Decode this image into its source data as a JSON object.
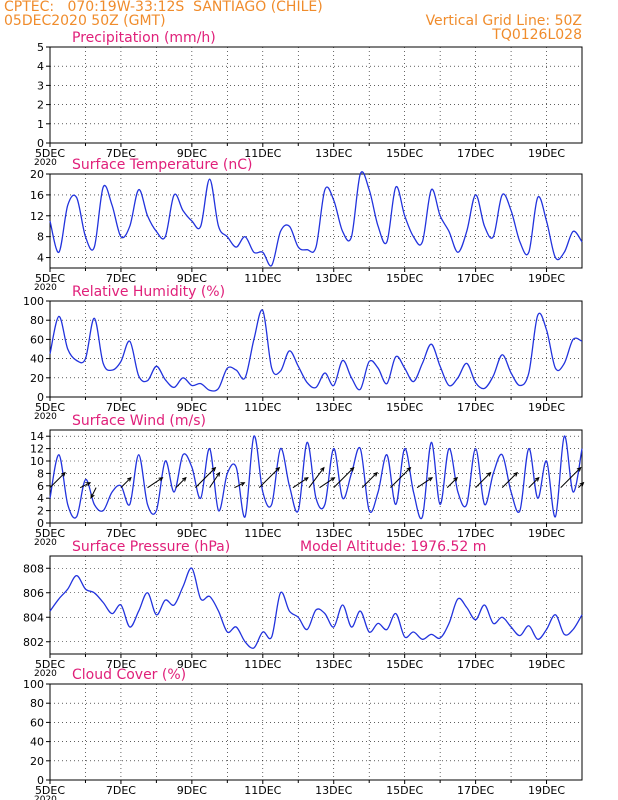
{
  "header": {
    "line1_left": "CPTEC:   070:19W-33:12S  SANTIAGO (CHILE)",
    "line2_left": "05DEC2020 50Z (GMT)",
    "line1_right": "Vertical Grid Line: 50Z",
    "line2_right": "TQ0126L028"
  },
  "colors": {
    "header": "#f08c2c",
    "title": "#e0207a",
    "series": "#2233dd",
    "wind_arrow": "#000000"
  },
  "x_axis": {
    "start": "05DEC",
    "end": "20DEC",
    "total_days": 15,
    "tick_labels": [
      "5DEC",
      "7DEC",
      "9DEC",
      "11DEC",
      "13DEC",
      "15DEC",
      "17DEC",
      "19DEC"
    ],
    "tick_days": [
      0,
      2,
      4,
      6,
      8,
      10,
      12,
      14
    ],
    "minor_tick_days": [
      1,
      3,
      5,
      7,
      9,
      11,
      13
    ],
    "year_label": "2020"
  },
  "chart_data": [
    {
      "type": "line",
      "title": "Precipitation (mm/h)",
      "ylim": [
        0,
        5
      ],
      "yticks": [
        0,
        1,
        2,
        3,
        4,
        5
      ],
      "series": [
        {
          "x": [],
          "values": []
        }
      ]
    },
    {
      "type": "line",
      "title": "Surface Temperature (nC)",
      "ylim": [
        2,
        20
      ],
      "yticks": [
        4,
        8,
        12,
        16,
        20
      ],
      "series": [
        {
          "x": [
            0,
            0.25,
            0.5,
            0.75,
            1,
            1.25,
            1.5,
            1.75,
            2,
            2.25,
            2.5,
            2.75,
            3,
            3.25,
            3.5,
            3.75,
            4,
            4.25,
            4.5,
            4.75,
            5,
            5.25,
            5.5,
            5.75,
            6,
            6.25,
            6.5,
            6.75,
            7,
            7.25,
            7.5,
            7.75,
            8,
            8.25,
            8.5,
            8.75,
            9,
            9.25,
            9.5,
            9.75,
            10,
            10.25,
            10.5,
            10.75,
            11,
            11.25,
            11.5,
            11.75,
            12,
            12.25,
            12.5,
            12.75,
            13,
            13.25,
            13.5,
            13.75,
            14,
            14.25,
            14.5,
            14.75,
            15
          ],
          "values": [
            11,
            5,
            14,
            15.5,
            8,
            6,
            17.5,
            14,
            8,
            10,
            17,
            12,
            9,
            8,
            16,
            13,
            11,
            10,
            19,
            10,
            8,
            6,
            8,
            5,
            5,
            2.5,
            9,
            10,
            6,
            5.5,
            6,
            17,
            15,
            9,
            8,
            20,
            17,
            10,
            7,
            17.5,
            12,
            8,
            7,
            17,
            12,
            9,
            5,
            9,
            16,
            10,
            8,
            16,
            13,
            7,
            5,
            15.5,
            11,
            4,
            5,
            9,
            7
          ]
        }
      ]
    },
    {
      "type": "line",
      "title": "Relative Humidity (%)",
      "ylim": [
        0,
        100
      ],
      "yticks": [
        0,
        20,
        40,
        60,
        80,
        100
      ],
      "series": [
        {
          "x": [
            0,
            0.25,
            0.5,
            0.75,
            1,
            1.25,
            1.5,
            1.75,
            2,
            2.25,
            2.5,
            2.75,
            3,
            3.25,
            3.5,
            3.75,
            4,
            4.25,
            4.5,
            4.75,
            5,
            5.25,
            5.5,
            5.75,
            6,
            6.25,
            6.5,
            6.75,
            7,
            7.25,
            7.5,
            7.75,
            8,
            8.25,
            8.5,
            8.75,
            9,
            9.25,
            9.5,
            9.75,
            10,
            10.25,
            10.5,
            10.75,
            11,
            11.25,
            11.5,
            11.75,
            12,
            12.25,
            12.5,
            12.75,
            13,
            13.25,
            13.5,
            13.75,
            14,
            14.25,
            14.5,
            14.75,
            15
          ],
          "values": [
            45,
            84,
            50,
            38,
            40,
            82,
            35,
            28,
            37,
            58,
            22,
            17,
            32,
            18,
            10,
            20,
            12,
            14,
            7,
            9,
            30,
            28,
            20,
            60,
            90,
            30,
            27,
            48,
            32,
            15,
            10,
            25,
            12,
            38,
            20,
            8,
            37,
            30,
            14,
            42,
            30,
            16,
            35,
            55,
            32,
            12,
            20,
            35,
            15,
            9,
            22,
            44,
            25,
            12,
            25,
            85,
            70,
            30,
            35,
            60,
            58
          ]
        }
      ]
    },
    {
      "type": "line",
      "title": "Surface Wind (m/s)",
      "ylim": [
        0,
        15
      ],
      "yticks": [
        0,
        2,
        4,
        6,
        8,
        10,
        12,
        14
      ],
      "series": [
        {
          "x": [
            0,
            0.25,
            0.5,
            0.75,
            1,
            1.25,
            1.5,
            1.75,
            2,
            2.25,
            2.5,
            2.75,
            3,
            3.25,
            3.5,
            3.75,
            4,
            4.25,
            4.5,
            4.75,
            5,
            5.25,
            5.5,
            5.75,
            6,
            6.25,
            6.5,
            6.75,
            7,
            7.25,
            7.5,
            7.75,
            8,
            8.25,
            8.5,
            8.75,
            9,
            9.25,
            9.5,
            9.75,
            10,
            10.25,
            10.5,
            10.75,
            11,
            11.25,
            11.5,
            11.75,
            12,
            12.25,
            12.5,
            12.75,
            13,
            13.25,
            13.5,
            13.75,
            14,
            14.25,
            14.5,
            14.75,
            15
          ],
          "values": [
            4,
            11,
            3,
            1,
            7,
            3,
            2,
            5,
            6,
            3,
            11,
            3,
            2,
            10,
            5,
            11,
            9,
            4,
            12,
            2,
            8,
            9,
            1,
            14,
            5,
            3,
            12,
            6,
            2,
            13,
            4,
            3,
            12,
            4,
            8,
            12,
            2,
            5,
            11,
            3,
            12,
            5,
            1,
            13,
            3,
            12,
            5,
            3,
            12,
            3,
            8,
            11,
            5,
            2,
            12,
            4,
            10,
            1,
            14,
            5,
            12
          ]
        }
      ],
      "wind_arrows": [
        {
          "day": 0.0,
          "u": 3,
          "v": 3
        },
        {
          "day": 0.85,
          "u": 2,
          "v": 1
        },
        {
          "day": 1.3,
          "u": -1,
          "v": -2
        },
        {
          "day": 2.0,
          "u": 2,
          "v": 2
        },
        {
          "day": 2.75,
          "u": 3,
          "v": 2
        },
        {
          "day": 3.55,
          "u": 2,
          "v": 2
        },
        {
          "day": 4.1,
          "u": 4,
          "v": 4
        },
        {
          "day": 4.5,
          "u": 2,
          "v": 3
        },
        {
          "day": 5.2,
          "u": 2,
          "v": 1
        },
        {
          "day": 5.9,
          "u": 4,
          "v": 4
        },
        {
          "day": 6.85,
          "u": 3,
          "v": 2
        },
        {
          "day": 7.3,
          "u": 3,
          "v": 4
        },
        {
          "day": 7.6,
          "u": 3,
          "v": 2
        },
        {
          "day": 8.0,
          "u": 4,
          "v": 4
        },
        {
          "day": 8.8,
          "u": 3,
          "v": 3
        },
        {
          "day": 9.6,
          "u": 4,
          "v": 4
        },
        {
          "day": 10.35,
          "u": 3,
          "v": 2
        },
        {
          "day": 11.2,
          "u": 2,
          "v": 2
        },
        {
          "day": 12.0,
          "u": 3,
          "v": 3
        },
        {
          "day": 12.75,
          "u": 3,
          "v": 3
        },
        {
          "day": 13.5,
          "u": 2,
          "v": 2
        },
        {
          "day": 14.4,
          "u": 4,
          "v": 4
        },
        {
          "day": 14.9,
          "u": 1,
          "v": 1
        }
      ]
    },
    {
      "type": "line",
      "title": "Surface Pressure (hPa)",
      "subtitle": "Model Altitude: 1976.52 m",
      "ylim": [
        801,
        809
      ],
      "yticks": [
        802,
        804,
        806,
        808
      ],
      "series": [
        {
          "x": [
            0,
            0.25,
            0.5,
            0.75,
            1,
            1.25,
            1.5,
            1.75,
            2,
            2.25,
            2.5,
            2.75,
            3,
            3.25,
            3.5,
            3.75,
            4,
            4.25,
            4.5,
            4.75,
            5,
            5.25,
            5.5,
            5.75,
            6,
            6.25,
            6.5,
            6.75,
            7,
            7.25,
            7.5,
            7.75,
            8,
            8.25,
            8.5,
            8.75,
            9,
            9.25,
            9.5,
            9.75,
            10,
            10.25,
            10.5,
            10.75,
            11,
            11.25,
            11.5,
            11.75,
            12,
            12.25,
            12.5,
            12.75,
            13,
            13.25,
            13.5,
            13.75,
            14,
            14.25,
            14.5,
            14.75,
            15
          ],
          "values": [
            804.5,
            805.5,
            806.3,
            807.4,
            806.3,
            806,
            805.2,
            804.3,
            805,
            803.2,
            804.5,
            806,
            804.2,
            805.4,
            805,
            806.5,
            808,
            805.5,
            805.7,
            804.5,
            802.8,
            803.2,
            802,
            801.5,
            802.8,
            802.4,
            806,
            804.5,
            804,
            803,
            804.6,
            804.3,
            803.2,
            805,
            803.2,
            804.5,
            802.8,
            803.5,
            803,
            804.3,
            802.4,
            802.8,
            802.2,
            802.6,
            802.3,
            803.5,
            805.5,
            804.8,
            803.8,
            805,
            803.5,
            804,
            803.2,
            802.5,
            803.3,
            802.2,
            803,
            804.2,
            802.6,
            803,
            804.2
          ]
        }
      ]
    },
    {
      "type": "line",
      "title": "Cloud Cover (%)",
      "ylim": [
        0,
        100
      ],
      "yticks": [
        0,
        20,
        40,
        60,
        80,
        100
      ],
      "series": [
        {
          "x": [],
          "values": []
        }
      ]
    }
  ]
}
